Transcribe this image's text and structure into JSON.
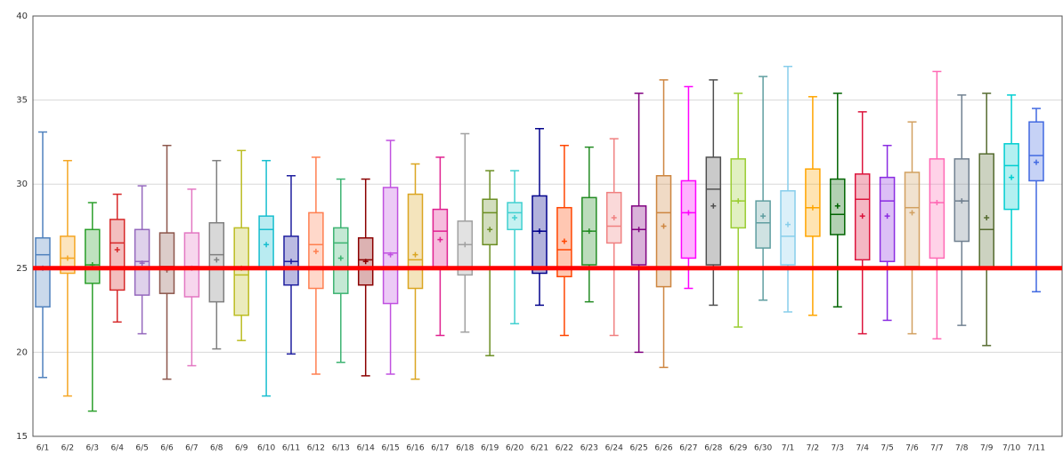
{
  "chart_data": {
    "type": "box",
    "categories": [
      "6/1",
      "6/2",
      "6/3",
      "6/4",
      "6/5",
      "6/6",
      "6/7",
      "6/8",
      "6/9",
      "6/10",
      "6/11",
      "6/12",
      "6/13",
      "6/14",
      "6/15",
      "6/16",
      "6/17",
      "6/18",
      "6/19",
      "6/20",
      "6/21",
      "6/22",
      "6/23",
      "6/24",
      "6/25",
      "6/26",
      "6/27",
      "6/28",
      "6/29",
      "6/30",
      "7/1",
      "7/2",
      "7/3",
      "7/4",
      "7/5",
      "7/6",
      "7/7",
      "7/8",
      "7/9",
      "7/10",
      "7/11"
    ],
    "whisker_low": [
      18.5,
      17.4,
      16.5,
      21.8,
      21.1,
      18.4,
      19.2,
      20.2,
      20.7,
      17.4,
      19.9,
      18.7,
      19.4,
      18.6,
      18.7,
      18.4,
      21.0,
      21.2,
      19.8,
      21.7,
      22.8,
      21.0,
      23.0,
      21.0,
      20.0,
      19.1,
      23.8,
      22.8,
      21.5,
      23.1,
      22.4,
      22.2,
      22.7,
      21.1,
      21.9,
      21.1,
      20.8,
      21.6,
      20.4,
      25.0,
      23.6
    ],
    "q1": [
      22.7,
      24.7,
      24.1,
      23.7,
      23.4,
      23.5,
      23.3,
      23.0,
      22.2,
      25.0,
      24.0,
      23.8,
      23.5,
      24.0,
      22.9,
      23.8,
      25.0,
      24.6,
      26.4,
      27.3,
      24.7,
      24.5,
      25.2,
      26.5,
      25.2,
      23.9,
      25.6,
      25.2,
      27.4,
      26.2,
      25.2,
      26.9,
      27.0,
      25.5,
      25.4,
      25.1,
      25.6,
      26.6,
      25.0,
      28.5,
      30.2
    ],
    "median": [
      25.8,
      25.6,
      25.2,
      26.5,
      25.4,
      25.1,
      25.1,
      25.8,
      24.6,
      27.3,
      25.4,
      26.4,
      26.5,
      25.5,
      25.9,
      25.5,
      27.2,
      26.4,
      28.3,
      28.3,
      27.2,
      26.1,
      27.2,
      27.5,
      27.3,
      28.3,
      28.3,
      29.7,
      29.0,
      27.7,
      26.9,
      28.6,
      28.2,
      29.1,
      29.0,
      28.6,
      28.9,
      29.0,
      27.3,
      31.1,
      31.7
    ],
    "q3": [
      26.8,
      26.9,
      27.3,
      27.9,
      27.3,
      27.1,
      27.1,
      27.7,
      27.4,
      28.1,
      26.9,
      28.3,
      27.4,
      26.8,
      29.8,
      29.4,
      28.5,
      27.8,
      29.1,
      28.9,
      29.3,
      28.6,
      29.2,
      29.5,
      28.7,
      30.5,
      30.2,
      31.6,
      31.5,
      29.0,
      29.6,
      30.9,
      30.3,
      30.6,
      30.4,
      30.7,
      31.5,
      31.5,
      31.8,
      32.4,
      33.7
    ],
    "whisker_high": [
      33.1,
      31.4,
      28.9,
      29.4,
      29.9,
      32.3,
      29.7,
      31.4,
      32.0,
      31.4,
      30.5,
      31.6,
      30.3,
      30.3,
      32.6,
      31.2,
      31.6,
      33.0,
      30.8,
      30.8,
      33.3,
      32.3,
      32.2,
      32.7,
      35.4,
      36.2,
      35.8,
      36.2,
      35.4,
      36.4,
      37.0,
      35.2,
      35.4,
      34.3,
      32.3,
      33.7,
      36.7,
      35.3,
      35.4,
      35.3,
      34.5
    ],
    "mean": [
      25.0,
      25.6,
      25.2,
      26.1,
      25.3,
      24.9,
      25.0,
      25.5,
      25.0,
      26.4,
      25.4,
      26.0,
      25.6,
      25.4,
      25.8,
      25.8,
      26.7,
      26.4,
      27.3,
      28.0,
      27.2,
      26.6,
      27.2,
      28.0,
      27.3,
      27.5,
      28.3,
      28.7,
      29.0,
      28.1,
      27.6,
      28.6,
      28.7,
      28.1,
      28.1,
      28.3,
      28.9,
      29.0,
      28.0,
      30.4,
      31.3
    ],
    "colors": [
      "#4f81bd",
      "#f5a623",
      "#2ca02c",
      "#d62728",
      "#9467bd",
      "#8c564b",
      "#e377c2",
      "#7f7f7f",
      "#bcbd22",
      "#17becf",
      "#1f1f9f",
      "#ff7f50",
      "#3cb371",
      "#8b0000",
      "#c050e0",
      "#daa520",
      "#e0208f",
      "#a0a0a0",
      "#6b8e23",
      "#40d0d0",
      "#00008b",
      "#ff4500",
      "#228b22",
      "#f08080",
      "#800080",
      "#cd853f",
      "#ff00ff",
      "#505050",
      "#9acd32",
      "#5f9ea0",
      "#87ceeb",
      "#ffa500",
      "#006400",
      "#dc143c",
      "#8a2be2",
      "#d2a060",
      "#ff69b4",
      "#708090",
      "#556b2f",
      "#00ced1",
      "#4169e1"
    ],
    "reference_line": {
      "value": 25,
      "color": "#ff0000"
    },
    "ylim": [
      15,
      40
    ],
    "yticks": [
      15,
      20,
      25,
      30,
      35,
      40
    ],
    "grid": true
  }
}
